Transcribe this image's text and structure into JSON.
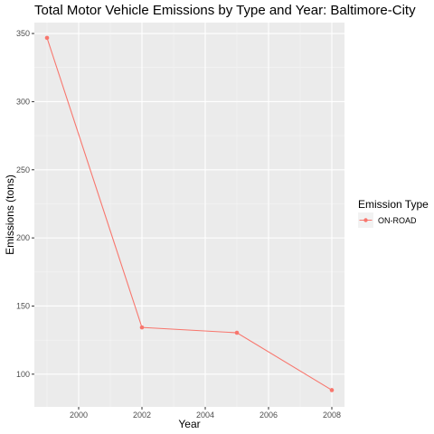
{
  "chart_data": {
    "type": "line",
    "title": "Total Motor Vehicle Emissions by Type and Year: Baltimore-City",
    "xlabel": "Year",
    "ylabel": "Emissions (tons)",
    "x_ticks": [
      2000,
      2002,
      2004,
      2006,
      2008
    ],
    "y_ticks": [
      100,
      150,
      200,
      250,
      300,
      350
    ],
    "xlim": [
      1998.6,
      2008.4
    ],
    "ylim": [
      76,
      358
    ],
    "grid": true,
    "legend": {
      "title": "Emission Type",
      "placement": "right"
    },
    "series": [
      {
        "name": "ON-ROAD",
        "color": "#f8766d",
        "x": [
          1999,
          2002,
          2005,
          2008
        ],
        "y": [
          346.8,
          134.3,
          130.4,
          88.3
        ]
      }
    ]
  }
}
